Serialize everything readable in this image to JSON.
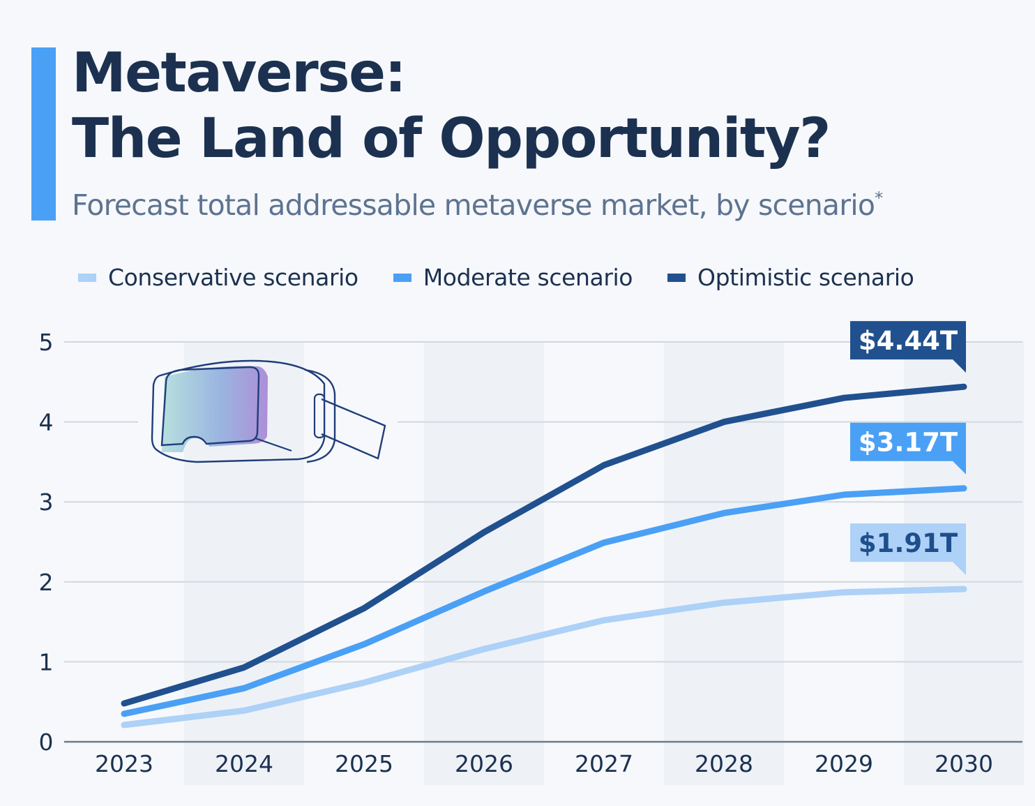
{
  "header": {
    "title_line1": "Metaverse:",
    "title_line2": "The Land of Opportunity?",
    "subtitle": "Forecast total addressable metaverse market, by scenario",
    "subtitle_footnote_mark": "*"
  },
  "colors": {
    "accent": "#4aa0f5",
    "title": "#1c3150",
    "subtitle": "#5d7390",
    "band": "#eef2f7",
    "grid": "#d3d8df",
    "axis": "#6b7a8c"
  },
  "illustration": {
    "icon": "vr-headset-icon"
  },
  "chart_data": {
    "type": "line",
    "title": "Metaverse: The Land of Opportunity?",
    "subtitle": "Forecast total addressable metaverse market, by scenario*",
    "xlabel": "",
    "ylabel": "",
    "categories": [
      "2023",
      "2024",
      "2025",
      "2026",
      "2027",
      "2028",
      "2029",
      "2030"
    ],
    "ylim": [
      0,
      5
    ],
    "yticks": [
      0,
      1,
      2,
      3,
      4,
      5
    ],
    "grid": true,
    "legend_position": "top-left",
    "series": [
      {
        "name": "Conservative scenario",
        "color": "#add1f7",
        "values": [
          0.21,
          0.39,
          0.74,
          1.16,
          1.52,
          1.74,
          1.87,
          1.91
        ],
        "end_label": "$1.91T",
        "label_text_color": "#1f4e8c"
      },
      {
        "name": "Moderate scenario",
        "color": "#4aa0f5",
        "values": [
          0.35,
          0.67,
          1.22,
          1.88,
          2.49,
          2.86,
          3.09,
          3.17
        ],
        "end_label": "$3.17T",
        "label_text_color": "#ffffff"
      },
      {
        "name": "Optimistic scenario",
        "color": "#21508f",
        "values": [
          0.48,
          0.93,
          1.67,
          2.62,
          3.46,
          4.0,
          4.3,
          4.44
        ],
        "end_label": "$4.44T",
        "label_text_color": "#ffffff"
      }
    ]
  }
}
